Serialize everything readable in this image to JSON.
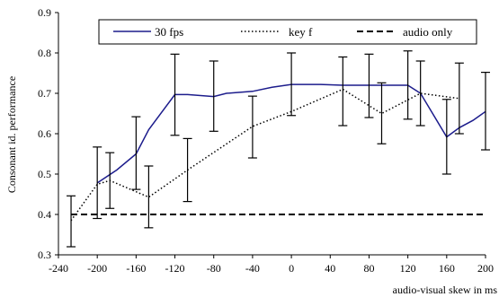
{
  "chart_data": {
    "type": "line",
    "xlabel": "audio-visual skew in ms",
    "ylabel": "Consonant id. performance",
    "xlim": [
      -240,
      200
    ],
    "ylim": [
      0.3,
      0.9
    ],
    "x_ticks": [
      -240,
      -200,
      -160,
      -120,
      -80,
      -40,
      0,
      40,
      80,
      120,
      160,
      200
    ],
    "y_ticks": [
      0.3,
      0.4,
      0.5,
      0.6,
      0.7,
      0.8,
      0.9
    ],
    "x_tick_labels": [
      "-240",
      "-200",
      "-160",
      "-120",
      "-80",
      "-40",
      "0",
      "40",
      "80",
      "120",
      "160",
      "200"
    ],
    "y_tick_labels": [
      "0.3",
      "0.4",
      "0.5",
      "0.6",
      "0.7",
      "0.8",
      "0.9"
    ],
    "grid": false,
    "legend_position": "top",
    "series": [
      {
        "name": "30 fps",
        "style": "solid",
        "color": "#1c1c8c",
        "x": [
          -200,
          -180,
          -160,
          -147,
          -120,
          -107,
          -80,
          -67,
          -40,
          -20,
          0,
          30,
          53,
          80,
          93,
          120,
          133,
          160,
          173,
          187,
          200
        ],
        "y": [
          0.478,
          0.51,
          0.55,
          0.61,
          0.697,
          0.697,
          0.692,
          0.7,
          0.705,
          0.715,
          0.722,
          0.722,
          0.72,
          0.72,
          0.72,
          0.72,
          0.7,
          0.592,
          0.615,
          0.633,
          0.655
        ],
        "error_x": [
          -200,
          -160,
          -120,
          -80,
          0,
          53,
          80,
          93,
          120,
          160,
          200
        ],
        "error_low": [
          0.39,
          0.462,
          0.596,
          0.606,
          0.645,
          0.62,
          0.64,
          0.575,
          0.636,
          0.5,
          0.56
        ],
        "error_high": [
          0.567,
          0.642,
          0.797,
          0.78,
          0.8,
          0.79,
          0.797,
          0.726,
          0.805,
          0.685,
          0.752
        ]
      },
      {
        "name": "key f",
        "style": "dotted",
        "color": "#000000",
        "x": [
          -227,
          -200,
          -187,
          -147,
          -107,
          -40,
          0,
          53,
          93,
          133,
          173
        ],
        "y": [
          0.385,
          0.475,
          0.484,
          0.443,
          0.51,
          0.618,
          0.655,
          0.71,
          0.65,
          0.7,
          0.687
        ],
        "error_x": [
          -227,
          -187,
          -147,
          -107,
          -40,
          133,
          173
        ],
        "error_low": [
          0.32,
          0.415,
          0.367,
          0.432,
          0.54,
          0.62,
          0.6
        ],
        "error_high": [
          0.446,
          0.553,
          0.52,
          0.588,
          0.693,
          0.78,
          0.775
        ]
      },
      {
        "name": "audio only",
        "style": "dashed",
        "color": "#000000",
        "x": [
          -227,
          200
        ],
        "y": [
          0.4,
          0.4
        ]
      }
    ]
  }
}
